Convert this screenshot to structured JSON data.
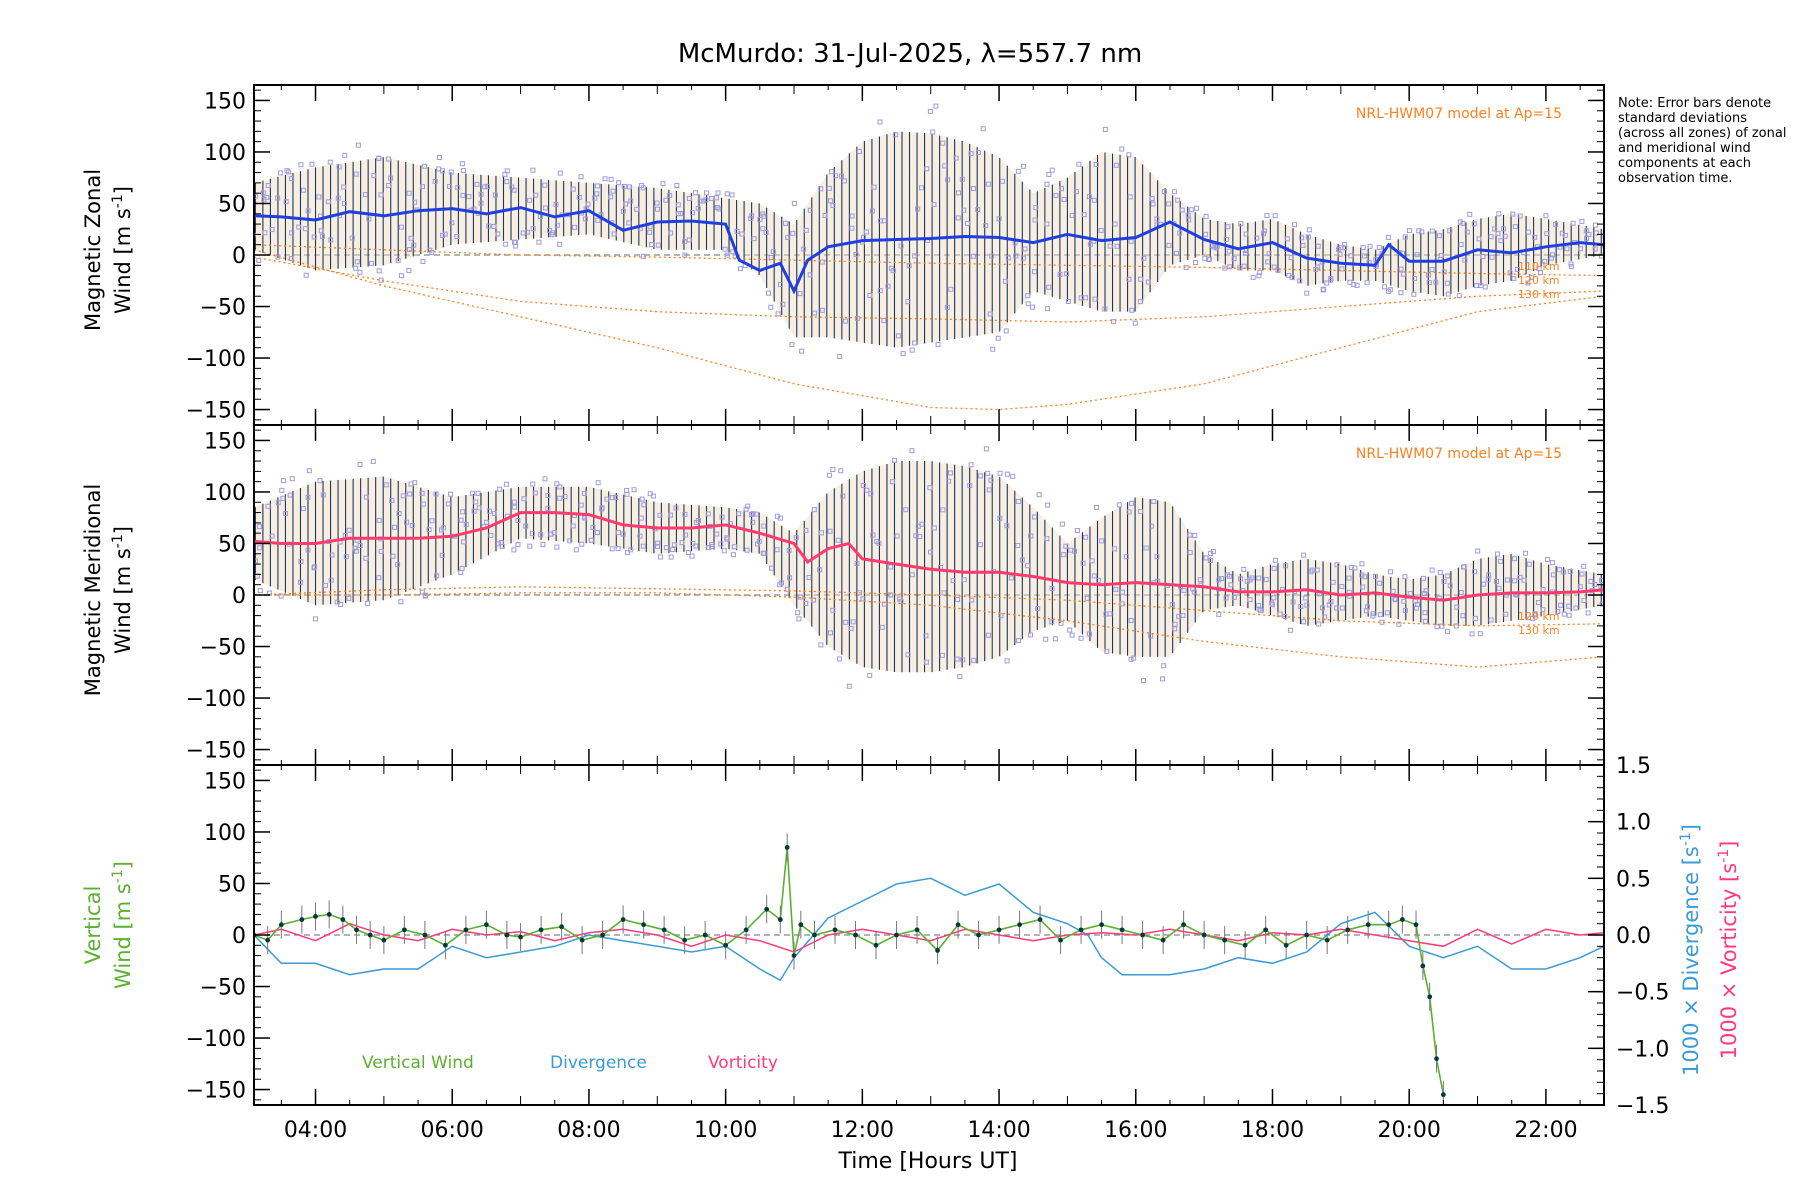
{
  "title": "McMurdo: 31-Jul-2025, λ=557.7 nm",
  "note": "Note: Error bars denote standard deviations (across all zones) of zonal and meridional wind components at each observation time.",
  "colors": {
    "zonal_line": "#1f3fe0",
    "zonal_line_light": "#4aa3e0",
    "meridional_line": "#ff3a6e",
    "scatter": "#9d9bdf",
    "errbar": "#0a3f66",
    "model": "#ff7f1e",
    "vertical": "#5cb030",
    "divergence": "#3a9bd5",
    "vorticity": "#ff3a7a",
    "dark_point": "#063a3a"
  },
  "chart_data": [
    {
      "type": "line",
      "panel": "zonal",
      "ylabel_line1": "Magnetic Zonal",
      "ylabel_line2": "Wind [m s",
      "ylabel_sup": "-1",
      "ylabel_end": "]",
      "ylim": [
        -165,
        165
      ],
      "yticks": [
        "150",
        "100",
        "50",
        "0",
        "−50",
        "−100",
        "−150"
      ],
      "ytick_values": [
        150,
        100,
        50,
        0,
        -50,
        -100,
        -150
      ],
      "xlim": [
        3.1,
        22.85
      ],
      "model_label": "NRL-HWM07 model at Ap=15",
      "model_levels": [
        "110 km",
        "120 km",
        "130 km"
      ],
      "series": [
        {
          "name": "Zonal wind (mean)",
          "x": [
            3.1,
            3.5,
            4.0,
            4.5,
            5.0,
            5.5,
            6.0,
            6.5,
            7.0,
            7.5,
            8.0,
            8.5,
            9.0,
            9.5,
            10.0,
            10.2,
            10.5,
            10.8,
            11.0,
            11.2,
            11.5,
            12.0,
            12.5,
            13.0,
            13.5,
            14.0,
            14.5,
            15.0,
            15.5,
            16.0,
            16.5,
            17.0,
            17.5,
            18.0,
            18.5,
            19.0,
            19.5,
            19.7,
            20.0,
            20.5,
            21.0,
            21.5,
            22.0,
            22.5,
            22.85
          ],
          "values": [
            38,
            37,
            34,
            42,
            38,
            43,
            45,
            40,
            46,
            37,
            43,
            24,
            32,
            33,
            30,
            -5,
            -15,
            -8,
            -35,
            -5,
            8,
            14,
            15,
            16,
            18,
            17,
            12,
            20,
            14,
            17,
            32,
            15,
            6,
            12,
            -3,
            -8,
            -10,
            10,
            -6,
            -6,
            5,
            2,
            8,
            12,
            10
          ]
        },
        {
          "name": "Zonal std band upper",
          "x": [
            3.1,
            4.0,
            5.0,
            6.0,
            7.0,
            8.0,
            9.0,
            10.0,
            10.5,
            11.0,
            11.5,
            12.0,
            12.5,
            13.0,
            13.5,
            14.0,
            14.5,
            15.0,
            15.5,
            16.0,
            16.5,
            17.0,
            17.5,
            18.0,
            18.5,
            19.0,
            19.5,
            20.0,
            20.5,
            21.0,
            21.5,
            22.0,
            22.85
          ],
          "values": [
            70,
            85,
            95,
            80,
            75,
            70,
            65,
            55,
            50,
            30,
            80,
            110,
            120,
            118,
            110,
            95,
            60,
            75,
            100,
            95,
            60,
            35,
            30,
            35,
            20,
            10,
            5,
            20,
            25,
            35,
            40,
            35,
            25
          ]
        },
        {
          "name": "Zonal std band lower",
          "x": [
            3.1,
            4.0,
            5.0,
            6.0,
            7.0,
            8.0,
            9.0,
            10.0,
            10.5,
            11.0,
            11.5,
            12.0,
            12.5,
            13.0,
            13.5,
            14.0,
            14.5,
            15.0,
            15.5,
            16.0,
            16.5,
            17.0,
            17.5,
            18.0,
            18.5,
            19.0,
            19.5,
            20.0,
            20.5,
            21.0,
            21.5,
            22.0,
            22.85
          ],
          "values": [
            5,
            -15,
            -10,
            10,
            15,
            20,
            5,
            5,
            -20,
            -80,
            -80,
            -85,
            -90,
            -85,
            -80,
            -75,
            -35,
            -45,
            -55,
            -55,
            -10,
            0,
            -15,
            -15,
            -30,
            -25,
            -25,
            -35,
            -40,
            -30,
            -25,
            -10,
            0
          ]
        },
        {
          "name": "Model 110 km",
          "x": [
            3.1,
            5.0,
            7.0,
            9.0,
            11.0,
            13.0,
            15.0,
            17.0,
            19.0,
            21.0,
            22.85
          ],
          "values": [
            -2,
            -25,
            -45,
            -55,
            -60,
            -62,
            -65,
            -60,
            -50,
            -40,
            -35
          ]
        },
        {
          "name": "Model 130 km",
          "x": [
            3.1,
            5.0,
            7.0,
            9.0,
            11.0,
            13.0,
            14.0,
            15.0,
            17.0,
            19.0,
            21.0,
            22.85
          ],
          "values": [
            5,
            -30,
            -60,
            -90,
            -125,
            -148,
            -150,
            -145,
            -125,
            -90,
            -55,
            -40
          ]
        },
        {
          "name": "Model 120 km",
          "x": [
            3.1,
            5.0,
            7.0,
            9.0,
            11.0,
            13.0,
            15.0,
            17.0,
            19.0,
            21.0,
            22.85
          ],
          "values": [
            10,
            5,
            0,
            -2,
            -5,
            -8,
            -10,
            -12,
            -15,
            -18,
            -20
          ]
        }
      ]
    },
    {
      "type": "line",
      "panel": "meridional",
      "ylabel_line1": "Magnetic Meridional",
      "ylabel_line2": "Wind [m s",
      "ylabel_sup": "-1",
      "ylabel_end": "]",
      "ylim": [
        -165,
        165
      ],
      "yticks": [
        "150",
        "100",
        "50",
        "0",
        "−50",
        "−100",
        "−150"
      ],
      "ytick_values": [
        150,
        100,
        50,
        0,
        -50,
        -100,
        -150
      ],
      "xlim": [
        3.1,
        22.85
      ],
      "model_label": "NRL-HWM07 model at Ap=15",
      "model_levels": [
        "120 km",
        "130 km"
      ],
      "series": [
        {
          "name": "Meridional wind (mean)",
          "x": [
            3.1,
            3.5,
            4.0,
            4.5,
            5.0,
            5.5,
            6.0,
            6.5,
            7.0,
            7.5,
            8.0,
            8.5,
            9.0,
            9.5,
            10.0,
            10.5,
            11.0,
            11.2,
            11.5,
            11.8,
            12.0,
            12.5,
            13.0,
            13.5,
            14.0,
            14.5,
            15.0,
            15.5,
            16.0,
            16.5,
            17.0,
            17.5,
            18.0,
            18.5,
            19.0,
            19.5,
            20.0,
            20.5,
            21.0,
            21.5,
            22.0,
            22.5,
            22.85
          ],
          "values": [
            52,
            50,
            50,
            55,
            55,
            55,
            57,
            65,
            80,
            80,
            78,
            68,
            65,
            65,
            68,
            60,
            50,
            32,
            45,
            50,
            35,
            30,
            25,
            22,
            22,
            18,
            12,
            10,
            12,
            10,
            8,
            3,
            3,
            5,
            0,
            2,
            -2,
            -5,
            0,
            2,
            2,
            3,
            5
          ]
        },
        {
          "name": "Meridional std band upper",
          "x": [
            3.1,
            4.0,
            5.0,
            6.0,
            7.0,
            8.0,
            9.0,
            10.0,
            10.5,
            11.0,
            11.5,
            12.0,
            12.5,
            13.0,
            13.5,
            14.0,
            14.5,
            15.0,
            15.5,
            16.0,
            16.5,
            17.0,
            17.5,
            18.0,
            18.5,
            19.0,
            19.5,
            20.0,
            20.5,
            21.0,
            21.5,
            22.0,
            22.85
          ],
          "values": [
            85,
            110,
            115,
            95,
            105,
            105,
            90,
            85,
            80,
            60,
            100,
            120,
            130,
            130,
            125,
            115,
            85,
            50,
            75,
            95,
            90,
            40,
            20,
            30,
            35,
            30,
            20,
            15,
            20,
            35,
            40,
            30,
            20
          ]
        },
        {
          "name": "Meridional std band lower",
          "x": [
            3.1,
            4.0,
            5.0,
            6.0,
            7.0,
            8.0,
            9.0,
            10.0,
            10.5,
            11.0,
            11.5,
            12.0,
            12.5,
            13.0,
            13.5,
            14.0,
            14.5,
            15.0,
            15.5,
            16.0,
            16.5,
            17.0,
            17.5,
            18.0,
            18.5,
            19.0,
            19.5,
            20.0,
            20.5,
            21.0,
            21.5,
            22.0,
            22.85
          ],
          "values": [
            15,
            -10,
            -5,
            20,
            55,
            50,
            40,
            45,
            40,
            -10,
            -50,
            -70,
            -75,
            -75,
            -70,
            -60,
            -35,
            -25,
            -55,
            -60,
            -60,
            -15,
            -10,
            -20,
            -30,
            -25,
            -20,
            -25,
            -30,
            -30,
            -25,
            -20,
            -10
          ]
        },
        {
          "name": "Model 120 km",
          "x": [
            3.1,
            5.0,
            7.0,
            9.0,
            11.0,
            13.0,
            15.0,
            17.0,
            19.0,
            21.0,
            22.85
          ],
          "values": [
            0,
            5,
            8,
            6,
            4,
            0,
            -5,
            -15,
            -25,
            -30,
            -28
          ]
        },
        {
          "name": "Model 130 km",
          "x": [
            3.1,
            5.0,
            7.0,
            9.0,
            11.0,
            13.0,
            15.0,
            17.0,
            19.0,
            21.0,
            22.85
          ],
          "values": [
            0,
            0,
            2,
            2,
            -2,
            -10,
            -25,
            -45,
            -60,
            -70,
            -60
          ]
        }
      ]
    },
    {
      "type": "line",
      "panel": "vertical",
      "ylabel_line1": "Vertical",
      "ylabel_line2": "Wind [m s",
      "ylabel_sup": "-1",
      "ylabel_end": "]",
      "ylim": [
        -165,
        165
      ],
      "yticks": [
        "150",
        "100",
        "50",
        "0",
        "−50",
        "−100",
        "−150"
      ],
      "ytick_values": [
        150,
        100,
        50,
        0,
        -50,
        -100,
        -150
      ],
      "y2lim": [
        -1.5,
        1.5
      ],
      "y2ticks": [
        "1.5",
        "1.0",
        "0.5",
        "0.0",
        "−0.5",
        "−1.0",
        "−1.5"
      ],
      "y2tick_values": [
        1.5,
        1.0,
        0.5,
        0.0,
        -0.5,
        -1.0,
        -1.5
      ],
      "y2label_div_a": "1000 × Divergence [s",
      "y2label_vort_a": "1000 × Vorticity [s",
      "y2label_sup": "-1",
      "y2label_end": "]",
      "xlim": [
        3.1,
        22.85
      ],
      "xticks": [
        "04:00",
        "06:00",
        "08:00",
        "10:00",
        "12:00",
        "14:00",
        "16:00",
        "18:00",
        "20:00",
        "22:00"
      ],
      "xtick_values": [
        4,
        6,
        8,
        10,
        12,
        14,
        16,
        18,
        20,
        22
      ],
      "xlabel": "Time [Hours UT]",
      "legend": [
        "Vertical Wind",
        "Divergence",
        "Vorticity"
      ],
      "series": [
        {
          "name": "Vertical Wind",
          "x": [
            3.1,
            3.3,
            3.5,
            3.8,
            4.0,
            4.2,
            4.4,
            4.6,
            4.8,
            5.0,
            5.3,
            5.6,
            5.9,
            6.2,
            6.5,
            6.8,
            7.0,
            7.3,
            7.6,
            7.9,
            8.2,
            8.5,
            8.8,
            9.1,
            9.4,
            9.7,
            10.0,
            10.3,
            10.6,
            10.8,
            10.9,
            11.0,
            11.1,
            11.3,
            11.6,
            11.9,
            12.2,
            12.5,
            12.8,
            13.1,
            13.4,
            13.7,
            14.0,
            14.3,
            14.6,
            14.9,
            15.2,
            15.5,
            15.8,
            16.1,
            16.4,
            16.7,
            17.0,
            17.3,
            17.6,
            17.9,
            18.2,
            18.5,
            18.8,
            19.1,
            19.4,
            19.7,
            19.9,
            20.1,
            20.2,
            20.3,
            20.4,
            20.5
          ],
          "values": [
            0,
            -5,
            10,
            15,
            18,
            20,
            15,
            5,
            0,
            -5,
            5,
            0,
            -10,
            5,
            10,
            0,
            -2,
            5,
            8,
            -5,
            0,
            15,
            10,
            5,
            -5,
            0,
            -10,
            5,
            25,
            15,
            85,
            -20,
            10,
            0,
            5,
            0,
            -10,
            0,
            5,
            -15,
            10,
            0,
            5,
            10,
            15,
            -5,
            5,
            10,
            5,
            0,
            -5,
            10,
            0,
            -5,
            -10,
            5,
            -10,
            0,
            -5,
            5,
            10,
            10,
            15,
            10,
            -30,
            -60,
            -120,
            -155
          ]
        },
        {
          "name": "Divergence",
          "x": [
            3.1,
            3.5,
            4.0,
            4.5,
            5.0,
            5.5,
            6.0,
            6.5,
            7.0,
            7.5,
            8.0,
            8.5,
            9.0,
            9.5,
            10.0,
            10.5,
            10.8,
            11.0,
            11.5,
            12.0,
            12.5,
            13.0,
            13.5,
            14.0,
            14.5,
            15.0,
            15.3,
            15.5,
            15.8,
            16.0,
            16.5,
            17.0,
            17.5,
            18.0,
            18.5,
            19.0,
            19.5,
            20.0,
            20.5,
            21.0,
            21.5,
            22.0,
            22.5,
            22.85
          ],
          "values": [
            0,
            -0.25,
            -0.25,
            -0.35,
            -0.3,
            -0.3,
            -0.1,
            -0.2,
            -0.15,
            -0.1,
            0.0,
            -0.05,
            -0.1,
            -0.15,
            -0.1,
            -0.3,
            -0.4,
            -0.2,
            0.15,
            0.3,
            0.45,
            0.5,
            0.35,
            0.45,
            0.2,
            0.1,
            0.0,
            -0.2,
            -0.35,
            -0.35,
            -0.35,
            -0.3,
            -0.2,
            -0.25,
            -0.15,
            0.1,
            0.2,
            -0.1,
            -0.2,
            -0.1,
            -0.3,
            -0.3,
            -0.2,
            -0.1
          ]
        },
        {
          "name": "Vorticity",
          "x": [
            3.1,
            3.5,
            4.0,
            4.5,
            5.0,
            5.5,
            6.0,
            6.5,
            7.0,
            7.5,
            8.0,
            8.5,
            9.0,
            9.5,
            10.0,
            10.5,
            11.0,
            11.5,
            12.0,
            12.5,
            13.0,
            13.5,
            14.0,
            14.5,
            15.0,
            15.5,
            16.0,
            16.5,
            17.0,
            17.5,
            18.0,
            18.5,
            19.0,
            19.5,
            20.0,
            20.5,
            21.0,
            21.5,
            22.0,
            22.5,
            22.85
          ],
          "values": [
            0.0,
            0.05,
            -0.05,
            0.1,
            0.0,
            -0.05,
            0.05,
            0.0,
            0.03,
            -0.05,
            0.02,
            0.05,
            0.0,
            -0.1,
            0.0,
            -0.05,
            -0.15,
            0.0,
            0.05,
            0.0,
            -0.05,
            0.05,
            0.0,
            -0.05,
            0.0,
            0.02,
            0.0,
            0.05,
            0.0,
            -0.05,
            0.02,
            0.0,
            0.05,
            0.0,
            -0.05,
            -0.1,
            0.05,
            -0.08,
            0.05,
            0.0,
            0.02
          ]
        }
      ]
    }
  ]
}
